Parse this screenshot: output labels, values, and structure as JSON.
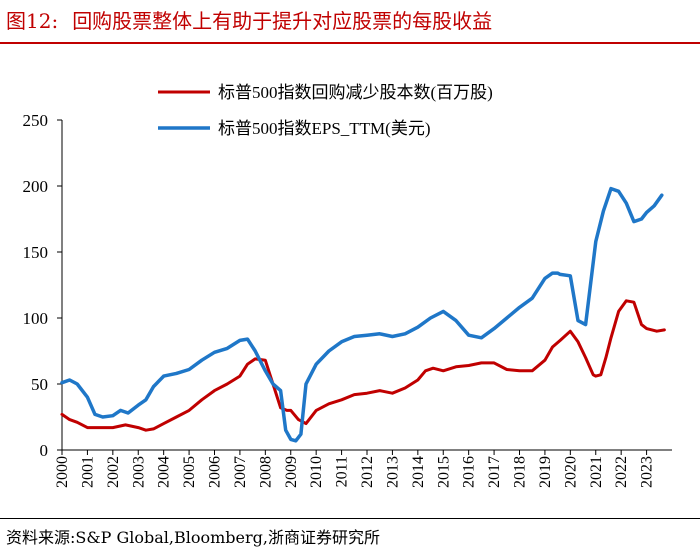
{
  "figure": {
    "number": "图12:",
    "title": "回购股票整体上有助于提升对应股票的每股收益",
    "source": "资料来源:S&P Global,Bloomberg,浙商证券研究所"
  },
  "chart_data": {
    "type": "line",
    "title": "",
    "xlabel": "",
    "ylabel": "",
    "ylim": [
      0,
      250
    ],
    "yticks": [
      0,
      50,
      100,
      150,
      200,
      250
    ],
    "xlim": [
      2000,
      2024
    ],
    "xticks": [
      "2000",
      "2001",
      "2002",
      "2003",
      "2004",
      "2005",
      "2006",
      "2007",
      "2008",
      "2009",
      "2010",
      "2011",
      "2012",
      "2013",
      "2014",
      "2015",
      "2016",
      "2017",
      "2018",
      "2019",
      "2020",
      "2021",
      "2022",
      "2023"
    ],
    "grid": false,
    "legend_position": "top-center",
    "series": [
      {
        "name": "标普500指数回购减少股本数(百万股)",
        "color": "#c00000",
        "x": [
          2000.0,
          2000.3,
          2000.6,
          2001.0,
          2001.5,
          2002.0,
          2002.5,
          2003.0,
          2003.3,
          2003.6,
          2004.0,
          2004.5,
          2005.0,
          2005.5,
          2006.0,
          2006.5,
          2007.0,
          2007.3,
          2007.6,
          2008.0,
          2008.3,
          2008.6,
          2008.85,
          2009.0,
          2009.3,
          2009.6,
          2010.0,
          2010.5,
          2011.0,
          2011.5,
          2012.0,
          2012.5,
          2013.0,
          2013.5,
          2014.0,
          2014.3,
          2014.6,
          2015.0,
          2015.5,
          2016.0,
          2016.5,
          2017.0,
          2017.5,
          2018.0,
          2018.5,
          2019.0,
          2019.3,
          2019.6,
          2020.0,
          2020.3,
          2020.6,
          2020.9,
          2021.0,
          2021.2,
          2021.4,
          2021.6,
          2021.9,
          2022.2,
          2022.5,
          2022.8,
          2023.0,
          2023.4,
          2023.7
        ],
        "values": [
          27,
          23,
          21,
          17,
          17,
          17,
          19,
          17,
          15,
          16,
          20,
          25,
          30,
          38,
          45,
          50,
          56,
          65,
          69,
          68,
          50,
          32,
          30,
          30,
          23,
          20,
          30,
          35,
          38,
          42,
          43,
          45,
          43,
          47,
          53,
          60,
          62,
          60,
          63,
          64,
          66,
          66,
          61,
          60,
          60,
          68,
          78,
          83,
          90,
          82,
          70,
          57,
          56,
          57,
          70,
          85,
          105,
          113,
          112,
          95,
          92,
          90,
          91
        ]
      },
      {
        "name": "标普500指数EPS_TTM(美元)",
        "color": "#1f77c8",
        "x": [
          2000.0,
          2000.3,
          2000.6,
          2001.0,
          2001.3,
          2001.6,
          2002.0,
          2002.3,
          2002.6,
          2003.0,
          2003.3,
          2003.6,
          2004.0,
          2004.5,
          2005.0,
          2005.5,
          2006.0,
          2006.5,
          2007.0,
          2007.3,
          2007.6,
          2008.0,
          2008.3,
          2008.6,
          2008.8,
          2009.0,
          2009.2,
          2009.4,
          2009.6,
          2010.0,
          2010.5,
          2011.0,
          2011.5,
          2012.0,
          2012.5,
          2013.0,
          2013.5,
          2014.0,
          2014.5,
          2015.0,
          2015.5,
          2016.0,
          2016.5,
          2017.0,
          2017.5,
          2018.0,
          2018.5,
          2019.0,
          2019.3,
          2019.5,
          2019.6,
          2020.0,
          2020.3,
          2020.6,
          2021.0,
          2021.3,
          2021.6,
          2021.9,
          2022.2,
          2022.5,
          2022.8,
          2023.0,
          2023.3,
          2023.6
        ],
        "values": [
          51,
          53,
          50,
          40,
          27,
          25,
          26,
          30,
          28,
          34,
          38,
          48,
          56,
          58,
          61,
          68,
          74,
          77,
          83,
          84,
          75,
          60,
          50,
          45,
          15,
          8,
          7,
          12,
          50,
          65,
          75,
          82,
          86,
          87,
          88,
          86,
          88,
          93,
          100,
          105,
          98,
          87,
          85,
          92,
          100,
          108,
          115,
          130,
          134,
          134,
          133,
          132,
          98,
          95,
          158,
          181,
          198,
          196,
          187,
          173,
          175,
          180,
          185,
          193
        ]
      }
    ]
  }
}
